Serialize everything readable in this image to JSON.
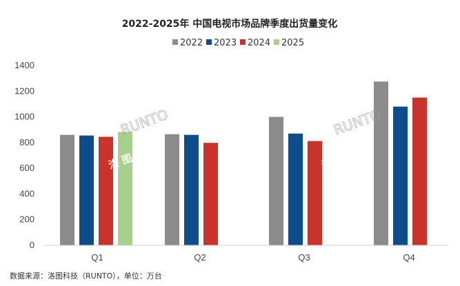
{
  "chart_data": {
    "type": "bar",
    "title": "2022-2025年 中国电视市场品牌季度出货量变化",
    "categories": [
      "Q1",
      "Q2",
      "Q3",
      "Q4"
    ],
    "series": [
      {
        "name": "2022",
        "color": "#8c8c8c",
        "values": [
          860,
          865,
          1000,
          1275
        ]
      },
      {
        "name": "2023",
        "color": "#0e4d8a",
        "values": [
          855,
          860,
          870,
          1080
        ]
      },
      {
        "name": "2024",
        "color": "#c8342b",
        "values": [
          845,
          798,
          812,
          1150
        ]
      },
      {
        "name": "2025",
        "color": "#a8d08d",
        "values": [
          883,
          null,
          null,
          null
        ]
      }
    ],
    "yticks": [
      0,
      200,
      400,
      600,
      800,
      1000,
      1200,
      1400
    ],
    "ylim": [
      0,
      1400
    ],
    "legend_position": "top-center",
    "grid": false,
    "source": "数据来源：洛图科技（RUNTO），单位：万台",
    "watermark": {
      "latin": "RUNTO",
      "cjk": "洛 图 科 技"
    }
  }
}
